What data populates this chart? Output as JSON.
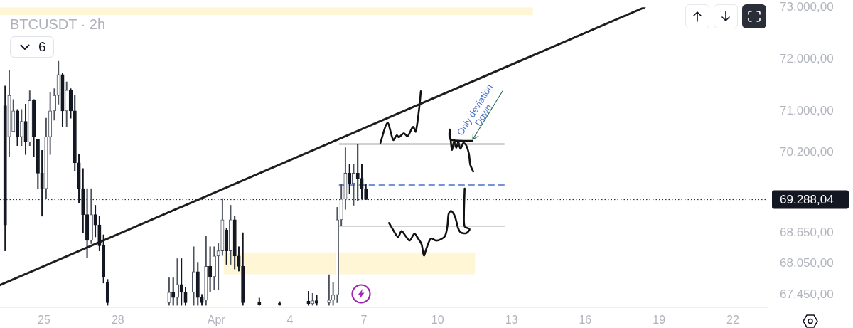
{
  "chart_data": {
    "type": "candlestick",
    "title": "BTCUSDT · 2h",
    "x": [
      "--03-23T10:00",
      "--03-23T14:00",
      "--03-23T18:00",
      "--03-23T22:00",
      "--03-24T02:00",
      "--03-24T06:00",
      "--03-24T10:00",
      "--03-24T14:00",
      "--03-24T18:00",
      "--03-24T22:00",
      "--03-25T02:00",
      "--03-25T06:00",
      "--03-25T10:00",
      "--03-25T14:00",
      "--03-25T18:00",
      "--03-25T22:00",
      "--03-26T02:00",
      "--03-26T06:00",
      "--03-26T10:00",
      "--03-26T14:00",
      "--03-26T18:00",
      "--03-26T22:00",
      "--03-27T02:00",
      "--03-27T06:00",
      "--03-27T10:00",
      "--03-27T14:00",
      "--03-30T02:00",
      "--03-30T06:00",
      "--03-30T10:00",
      "--03-30T14:00",
      "--03-30T18:00",
      "--03-31T02:00",
      "--03-31T06:00",
      "--03-31T10:00",
      "--03-31T14:00",
      "--03-31T18:00",
      "--03-31T22:00",
      "--04-01T02:00",
      "--04-01T06:00",
      "--04-01T10:00",
      "--04-01T14:00",
      "--04-01T18:00",
      "--04-01T22:00",
      "--04-02T02:00",
      "--04-02T18:00",
      "--04-03T14:00",
      "--04-04T18:00",
      "--04-04T22:00",
      "--04-05T02:00",
      "--04-05T14:00",
      "--04-05T18:00",
      "--04-05T22:00",
      "--04-06T02:00",
      "--04-06T06:00",
      "--04-06T10:00",
      "--04-06T14:00",
      "--04-06T18:00",
      "--04-06T22:00",
      "--04-07T02:00"
    ],
    "ohlc": [
      [
        71100,
        71480,
        68300,
        68800
      ],
      [
        70500,
        71790,
        70110,
        71300
      ],
      [
        70600,
        71220,
        70600,
        71000
      ],
      [
        71000,
        71030,
        70330,
        70500
      ],
      [
        70500,
        71030,
        70330,
        70800
      ],
      [
        70800,
        71130,
        70160,
        70400
      ],
      [
        70400,
        71390,
        70330,
        71200
      ],
      [
        71200,
        71220,
        70110,
        70500
      ],
      [
        70450,
        70460,
        69500,
        69800
      ],
      [
        69800,
        70240,
        68970,
        69500
      ],
      [
        69500,
        70860,
        69310,
        70500
      ],
      [
        70500,
        71350,
        70160,
        71000
      ],
      [
        71000,
        71430,
        70820,
        71300
      ],
      [
        71300,
        71960,
        71130,
        71700
      ],
      [
        71700,
        71720,
        70690,
        71000
      ],
      [
        71000,
        71560,
        70690,
        71400
      ],
      [
        71400,
        71430,
        70860,
        71000
      ],
      [
        71000,
        71300,
        69840,
        70000
      ],
      [
        70000,
        70160,
        69230,
        69500
      ],
      [
        69500,
        69890,
        68650,
        69000
      ],
      [
        69000,
        69500,
        68170,
        68500
      ],
      [
        68500,
        69500,
        68440,
        69000
      ],
      [
        69000,
        69180,
        68570,
        68800
      ],
      [
        68800,
        68970,
        68300,
        68400
      ],
      [
        68400,
        68610,
        67680,
        67800
      ],
      [
        67700,
        67750,
        67250,
        67300
      ],
      [
        67300,
        67780,
        67250,
        67500
      ],
      [
        67500,
        67780,
        67250,
        67400
      ],
      [
        67400,
        68150,
        67250,
        67650
      ],
      [
        67650,
        68150,
        67250,
        67500
      ],
      [
        67500,
        67600,
        67250,
        67300
      ],
      [
        67500,
        68380,
        67250,
        67900
      ],
      [
        67900,
        68080,
        67250,
        67400
      ],
      [
        67400,
        67460,
        67250,
        67300
      ],
      [
        67350,
        68580,
        67250,
        68000
      ],
      [
        68000,
        68380,
        67510,
        67800
      ],
      [
        67800,
        68380,
        67550,
        68200
      ],
      [
        68200,
        68440,
        67550,
        68300
      ],
      [
        68300,
        69310,
        68210,
        68900
      ],
      [
        68700,
        68740,
        68040,
        68300
      ],
      [
        68300,
        69180,
        68040,
        68900
      ],
      [
        68900,
        68970,
        67950,
        68200
      ],
      [
        68200,
        68380,
        67910,
        68000
      ],
      [
        68000,
        68650,
        67250,
        67300
      ],
      [
        67300,
        67390,
        67250,
        67270
      ],
      [
        67290,
        67320,
        67250,
        67270
      ],
      [
        67330,
        67520,
        67250,
        67280
      ],
      [
        67280,
        67480,
        67250,
        67340
      ],
      [
        67340,
        67450,
        67250,
        67290
      ],
      [
        67300,
        67840,
        67250,
        67350
      ],
      [
        67350,
        67700,
        67250,
        67450
      ],
      [
        67450,
        69140,
        67300,
        68900
      ],
      [
        68900,
        69580,
        68780,
        69300
      ],
      [
        69300,
        70290,
        69100,
        69800
      ],
      [
        69800,
        69970,
        69400,
        69600
      ],
      [
        69600,
        69970,
        69180,
        69800
      ],
      [
        69800,
        70360,
        69270,
        69700
      ],
      [
        69700,
        69970,
        69310,
        69500
      ],
      [
        69500,
        69580,
        69290,
        69290
      ]
    ],
    "colors": [
      "#131722",
      "#4c525e",
      "#4c525e",
      "#131722",
      "#4c525e",
      "#131722",
      "#4c525e",
      "#131722",
      "#131722",
      "#131722",
      "#4c525e",
      "#4c525e",
      "#4c525e",
      "#4c525e",
      "#131722",
      "#4c525e",
      "#131722",
      "#131722",
      "#131722",
      "#131722",
      "#131722",
      "#4c525e",
      "#131722",
      "#131722",
      "#131722",
      "#131722",
      "#4c525e",
      "#131722",
      "#4c525e",
      "#131722",
      "#131722",
      "#4c525e",
      "#131722",
      "#131722",
      "#4c525e",
      "#131722",
      "#4c525e",
      "#4c525e",
      "#4c525e",
      "#131722",
      "#4c525e",
      "#131722",
      "#131722",
      "#131722",
      "#131722",
      "#131722",
      "#131722",
      "#4c525e",
      "#131722",
      "#4c525e",
      "#4c525e",
      "#4c525e",
      "#4c525e",
      "#4c525e",
      "#131722",
      "#4c525e",
      "#131722",
      "#131722",
      "#131722"
    ],
    "series": [
      {
        "type": "line",
        "x": [
          "--03-23T05:00",
          "--04-13T21:00"
        ],
        "values": [
          null,
          null
        ],
        "lower": [
          72850,
          72850
        ],
        "upper": [
          73000,
          73000
        ],
        "color": "#fff6d5"
      },
      {
        "type": "line",
        "x": [
          "--04-01T07:00",
          "--04-11T12:45"
        ],
        "values": [
          null,
          null
        ],
        "lower": [
          67850,
          67850
        ],
        "upper": [
          68270,
          68270
        ],
        "color": "#fff6d5"
      },
      {
        "type": "line",
        "x": [
          "--03-23T05:00",
          "--04-18T10:00"
        ],
        "values": [
          67640,
          73000
        ],
        "color": "#1e1e1e"
      },
      {
        "type": "line",
        "x": [
          "--04-06T00:00",
          "--04-12T17:00"
        ],
        "values": [
          70360,
          70360
        ],
        "color": "#4d4d4d"
      },
      {
        "type": "line",
        "x": [
          "--04-06T00:00",
          "--04-12T17:00"
        ],
        "values": [
          69570,
          69570
        ],
        "color": "#4a6fd0",
        "line_style": "dashed"
      },
      {
        "type": "line",
        "x": [
          "--04-06T00:00",
          "--04-12T17:00"
        ],
        "values": [
          68780,
          68780
        ],
        "color": "#4d4d4d"
      },
      {
        "type": "line",
        "x": [
          "--04-07T16:05",
          "--04-07T23:00",
          "--04-08T04:40",
          "--04-08T08:10",
          "--04-08T10:10",
          "--04-08T15:00",
          "--04-08T18:30",
          "--04-09T00:00",
          "--04-09T02:35",
          "--04-09T06:15",
          "--04-09T07:35"
        ],
        "values": [
          70380,
          70770,
          70440,
          70530,
          70490,
          70570,
          70510,
          70690,
          70600,
          71100,
          71380
        ],
        "color": "#111111"
      },
      {
        "type": "line",
        "x": [
          "--04-11T09:55",
          "--04-10T12:35",
          "--04-10T11:50",
          "--04-10T13:55",
          "--04-10T16:00",
          "--04-10T18:05",
          "--04-10T20:10",
          "--04-10T22:10",
          "--04-11T01:00",
          "--04-11T03:45",
          "--04-11T06:30",
          "--04-11T07:50",
          "--04-11T10:40"
        ],
        "values": [
          70420,
          70450,
          70640,
          70250,
          70410,
          70290,
          70400,
          70270,
          70380,
          70340,
          70170,
          69960,
          69830
        ],
        "color": "#111111"
      },
      {
        "type": "line",
        "x": [
          "--04-08T00:30",
          "--04-08T04:40",
          "--04-08T09:20",
          "--04-08T12:45",
          "--04-08T17:20",
          "--04-08T20:45",
          "--04-09T01:20",
          "--04-09T04:50",
          "--04-09T08:15",
          "--04-09T10:35",
          "--04-09T12:55",
          "--04-09T17:25",
          "--04-09T22:05",
          "--04-10T02:40",
          "--04-10T07:15",
          "--04-10T09:35",
          "--04-10T10:40",
          "--04-10T13:00",
          "--04-10T16:30",
          "--04-10T18:45",
          "--04-10T19:55",
          "--04-10T22:10",
          "--04-11T03:45",
          "--04-11T07:10",
          "--04-11T02:20",
          "--04-11T01:40",
          "--04-11T02:20"
        ],
        "values": [
          68840,
          68700,
          68570,
          68680,
          68570,
          68500,
          68630,
          68540,
          68430,
          68210,
          68340,
          68540,
          68500,
          68520,
          68590,
          68790,
          69010,
          69070,
          68980,
          68830,
          68740,
          68660,
          68640,
          68720,
          68770,
          69010,
          69500
        ],
        "color": "#111111"
      }
    ],
    "xlim": [
      "--03-23T05:00",
      "--04-23T10:00"
    ],
    "ylim": [
      67210,
      73000
    ],
    "xticks": [
      {
        "value": "--03-25",
        "label": "25"
      },
      {
        "value": "--03-28",
        "label": "28"
      },
      {
        "value": "--04-01",
        "label": "Apr"
      },
      {
        "value": "--04-04",
        "label": "4"
      },
      {
        "value": "--04-07",
        "label": "7"
      },
      {
        "value": "--04-10",
        "label": "10"
      },
      {
        "value": "--04-13",
        "label": "13"
      },
      {
        "value": "--04-16",
        "label": "16"
      },
      {
        "value": "--04-19",
        "label": "19"
      },
      {
        "value": "--04-22",
        "label": "22"
      }
    ],
    "yticks": [
      {
        "value": 67450,
        "label": "67.450,00"
      },
      {
        "value": 68050,
        "label": "68.050,00"
      },
      {
        "value": 68650,
        "label": "68.650,00"
      },
      {
        "value": 70200,
        "label": "70.200,00"
      },
      {
        "value": 71000,
        "label": "71.000,00"
      },
      {
        "value": 72000,
        "label": "72.000,00"
      },
      {
        "value": 73000,
        "label": "73.000,00"
      }
    ],
    "ref_lines": [
      {
        "axis": "y",
        "value": 69288.04,
        "label": "69.288,04",
        "color": "#131722",
        "line_style": "dotted"
      }
    ],
    "annotations": [
      "6",
      {
        "text": "Only deviation Down",
        "x": "--04-11T10:00",
        "y": 70360
      }
    ]
  }
}
